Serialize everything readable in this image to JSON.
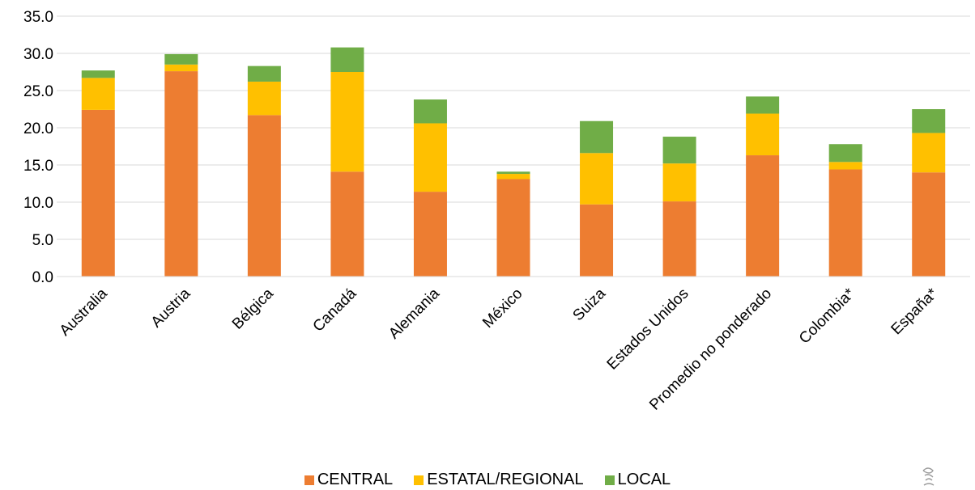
{
  "chart_data": {
    "type": "bar",
    "stacked": true,
    "categories": [
      "Australia",
      "Austria",
      "Bélgica",
      "Canadá",
      "Alemania",
      "México",
      "Suiza",
      "Estados Unidos",
      "Promedio no ponderado",
      "Colombia*",
      "España*"
    ],
    "series": [
      {
        "name": "CENTRAL",
        "color": "#ED7D31",
        "values": [
          22.4,
          27.6,
          21.7,
          14.1,
          11.4,
          13.1,
          9.7,
          10.1,
          16.3,
          14.4,
          14.0
        ]
      },
      {
        "name": "ESTATAL/REGIONAL",
        "color": "#FFC000",
        "values": [
          4.3,
          0.9,
          4.5,
          13.4,
          9.2,
          0.7,
          6.9,
          5.1,
          5.6,
          1.0,
          5.3
        ]
      },
      {
        "name": "LOCAL",
        "color": "#70AD47",
        "values": [
          1.0,
          1.4,
          2.1,
          3.3,
          3.2,
          0.3,
          4.3,
          3.6,
          2.3,
          2.4,
          3.2
        ]
      }
    ],
    "ylim": [
      0,
      35
    ],
    "yticks": [
      "0.0",
      "5.0",
      "10.0",
      "15.0",
      "20.0",
      "25.0",
      "30.0",
      "35.0"
    ],
    "grid": true,
    "legend_position": "bottom"
  }
}
